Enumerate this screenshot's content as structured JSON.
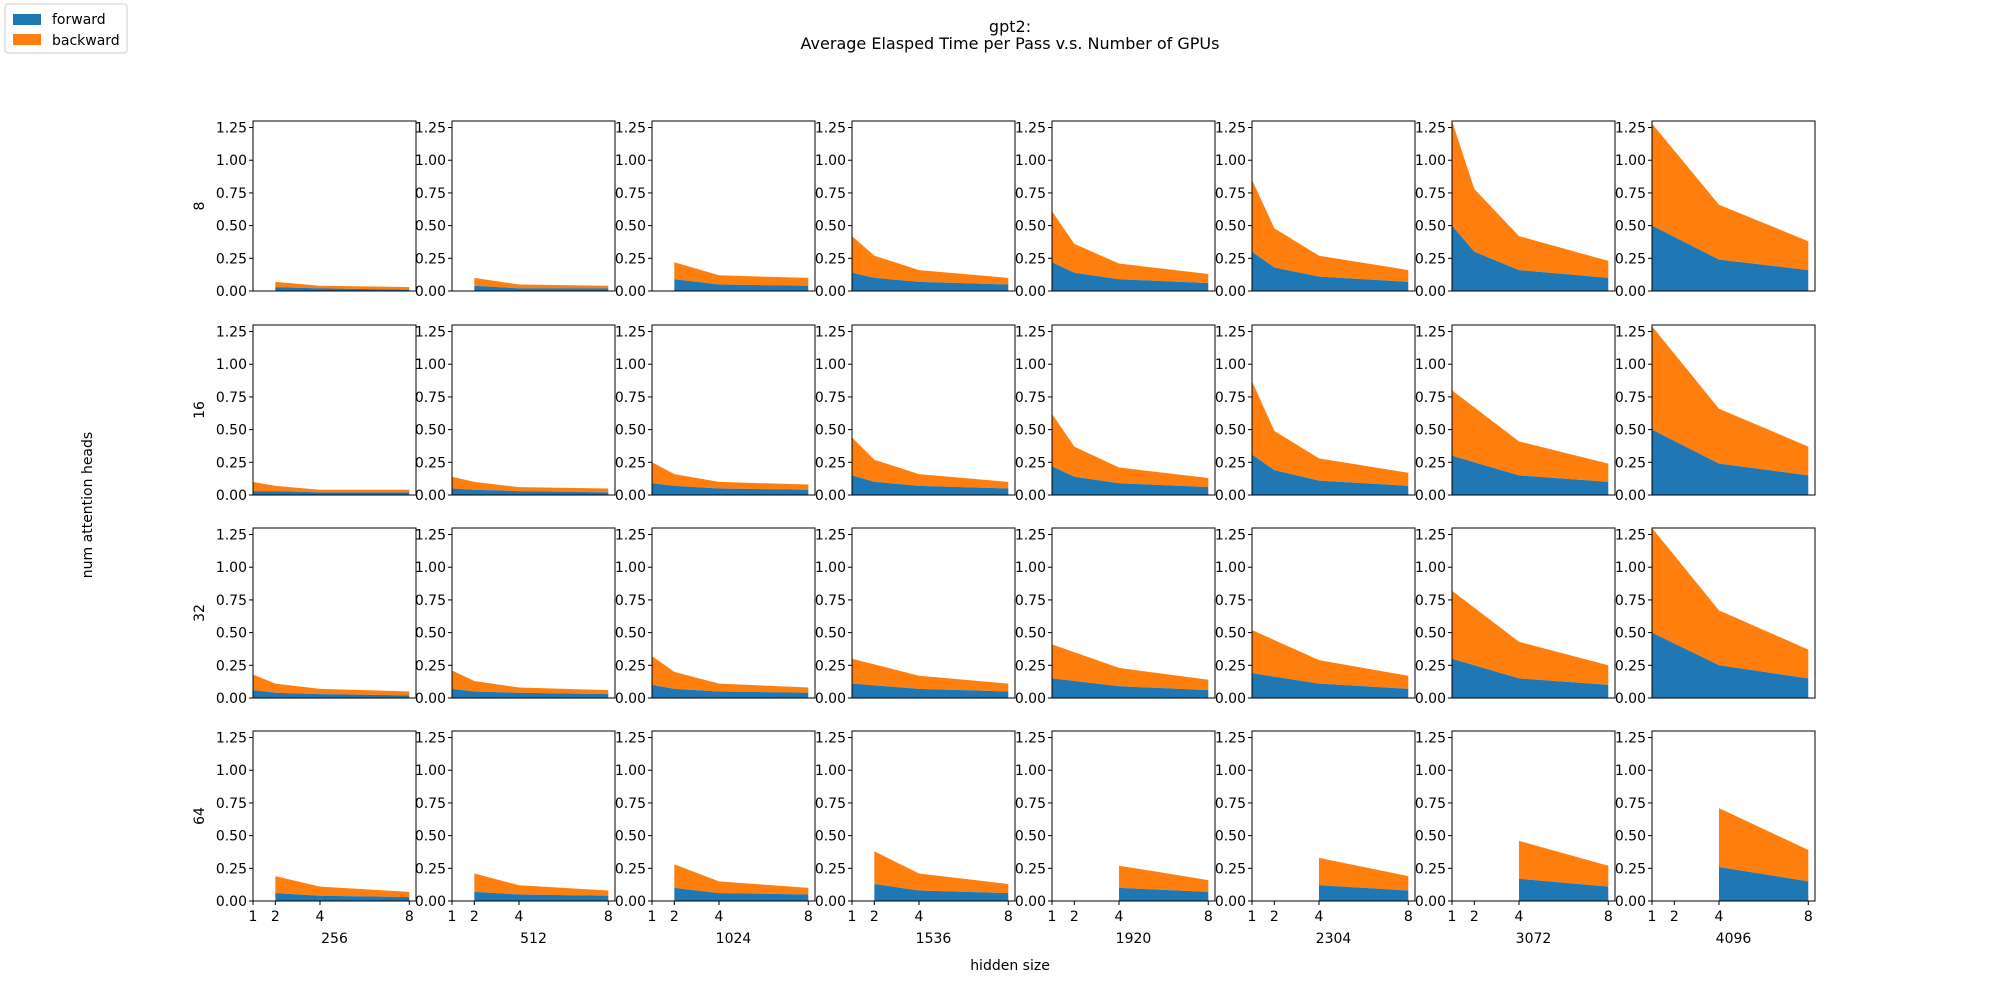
{
  "title_line1": "gpt2:",
  "title_line2": "Average Elasped Time per Pass v.s. Number of GPUs",
  "xlabel": "hidden size",
  "ylabel": "num attention heads",
  "legend": {
    "position": "top-left",
    "items": [
      {
        "label": "forward",
        "color": "#1f77b4"
      },
      {
        "label": "backward",
        "color": "#ff7f0e"
      }
    ]
  },
  "chart_data": {
    "type": "area",
    "stacked": true,
    "grid": false,
    "x_ticks": [
      1,
      2,
      4,
      8
    ],
    "y_ticks": [
      0.0,
      0.25,
      0.5,
      0.75,
      1.0,
      1.25
    ],
    "y_tick_labels": [
      "0.00",
      "0.25",
      "0.50",
      "0.75",
      "1.00",
      "1.25"
    ],
    "ylim": [
      0,
      1.3
    ],
    "xlim": [
      1,
      8.3
    ],
    "series_names": [
      "forward",
      "backward"
    ],
    "col_labels": [
      "256",
      "512",
      "1024",
      "1536",
      "1920",
      "2304",
      "3072",
      "4096"
    ],
    "row_labels": [
      "8",
      "16",
      "32",
      "64"
    ],
    "panels": [
      [
        {
          "x": [
            2,
            4,
            8
          ],
          "forward": [
            0.03,
            0.02,
            0.01
          ],
          "backward": [
            0.04,
            0.02,
            0.02
          ]
        },
        {
          "x": [
            2,
            4,
            8
          ],
          "forward": [
            0.04,
            0.02,
            0.02
          ],
          "backward": [
            0.06,
            0.03,
            0.02
          ]
        },
        {
          "x": [
            2,
            4,
            8
          ],
          "forward": [
            0.09,
            0.05,
            0.04
          ],
          "backward": [
            0.13,
            0.07,
            0.06
          ]
        },
        {
          "x": [
            1,
            2,
            4,
            8
          ],
          "forward": [
            0.14,
            0.1,
            0.07,
            0.05
          ],
          "backward": [
            0.28,
            0.17,
            0.09,
            0.05
          ]
        },
        {
          "x": [
            1,
            2,
            4,
            8
          ],
          "forward": [
            0.22,
            0.14,
            0.09,
            0.06
          ],
          "backward": [
            0.39,
            0.22,
            0.12,
            0.07
          ]
        },
        {
          "x": [
            1,
            2,
            4,
            8
          ],
          "forward": [
            0.3,
            0.18,
            0.11,
            0.07
          ],
          "backward": [
            0.55,
            0.3,
            0.16,
            0.09
          ]
        },
        {
          "x": [
            1,
            2,
            4,
            8
          ],
          "forward": [
            0.5,
            0.3,
            0.16,
            0.1
          ],
          "backward": [
            0.8,
            0.48,
            0.26,
            0.13
          ]
        },
        {
          "x": [
            1,
            4,
            8
          ],
          "forward": [
            0.5,
            0.24,
            0.16
          ],
          "backward": [
            0.78,
            0.42,
            0.22
          ]
        }
      ],
      [
        {
          "x": [
            1,
            2,
            4,
            8
          ],
          "forward": [
            0.03,
            0.03,
            0.02,
            0.02
          ],
          "backward": [
            0.07,
            0.04,
            0.02,
            0.02
          ]
        },
        {
          "x": [
            1,
            2,
            4,
            8
          ],
          "forward": [
            0.05,
            0.04,
            0.03,
            0.02
          ],
          "backward": [
            0.09,
            0.06,
            0.03,
            0.03
          ]
        },
        {
          "x": [
            1,
            2,
            4,
            8
          ],
          "forward": [
            0.09,
            0.07,
            0.05,
            0.04
          ],
          "backward": [
            0.16,
            0.09,
            0.05,
            0.04
          ]
        },
        {
          "x": [
            1,
            2,
            4,
            8
          ],
          "forward": [
            0.15,
            0.1,
            0.07,
            0.05
          ],
          "backward": [
            0.29,
            0.17,
            0.09,
            0.05
          ]
        },
        {
          "x": [
            1,
            2,
            4,
            8
          ],
          "forward": [
            0.22,
            0.14,
            0.09,
            0.06
          ],
          "backward": [
            0.4,
            0.23,
            0.12,
            0.07
          ]
        },
        {
          "x": [
            1,
            2,
            4,
            8
          ],
          "forward": [
            0.31,
            0.19,
            0.11,
            0.07
          ],
          "backward": [
            0.56,
            0.3,
            0.17,
            0.1
          ]
        },
        {
          "x": [
            1,
            4,
            8
          ],
          "forward": [
            0.3,
            0.15,
            0.1
          ],
          "backward": [
            0.5,
            0.26,
            0.14
          ]
        },
        {
          "x": [
            1,
            4,
            8
          ],
          "forward": [
            0.5,
            0.24,
            0.15
          ],
          "backward": [
            0.79,
            0.42,
            0.22
          ]
        }
      ],
      [
        {
          "x": [
            1,
            2,
            4,
            8
          ],
          "forward": [
            0.06,
            0.04,
            0.03,
            0.02
          ],
          "backward": [
            0.12,
            0.07,
            0.04,
            0.03
          ]
        },
        {
          "x": [
            1,
            2,
            4,
            8
          ],
          "forward": [
            0.07,
            0.05,
            0.04,
            0.03
          ],
          "backward": [
            0.14,
            0.08,
            0.04,
            0.03
          ]
        },
        {
          "x": [
            1,
            2,
            4,
            8
          ],
          "forward": [
            0.1,
            0.07,
            0.05,
            0.04
          ],
          "backward": [
            0.22,
            0.13,
            0.06,
            0.04
          ]
        },
        {
          "x": [
            1,
            4,
            8
          ],
          "forward": [
            0.11,
            0.07,
            0.05
          ],
          "backward": [
            0.19,
            0.1,
            0.06
          ]
        },
        {
          "x": [
            1,
            4,
            8
          ],
          "forward": [
            0.15,
            0.09,
            0.06
          ],
          "backward": [
            0.26,
            0.14,
            0.08
          ]
        },
        {
          "x": [
            1,
            4,
            8
          ],
          "forward": [
            0.19,
            0.11,
            0.07
          ],
          "backward": [
            0.33,
            0.18,
            0.1
          ]
        },
        {
          "x": [
            1,
            4,
            8
          ],
          "forward": [
            0.3,
            0.15,
            0.1
          ],
          "backward": [
            0.52,
            0.28,
            0.15
          ]
        },
        {
          "x": [
            1,
            4,
            8
          ],
          "forward": [
            0.5,
            0.25,
            0.15
          ],
          "backward": [
            0.8,
            0.42,
            0.22
          ]
        }
      ],
      [
        {
          "x": [
            2,
            4,
            8
          ],
          "forward": [
            0.06,
            0.04,
            0.03
          ],
          "backward": [
            0.13,
            0.07,
            0.04
          ]
        },
        {
          "x": [
            2,
            4,
            8
          ],
          "forward": [
            0.07,
            0.05,
            0.04
          ],
          "backward": [
            0.14,
            0.07,
            0.04
          ]
        },
        {
          "x": [
            2,
            4,
            8
          ],
          "forward": [
            0.1,
            0.06,
            0.05
          ],
          "backward": [
            0.18,
            0.09,
            0.05
          ]
        },
        {
          "x": [
            2,
            4,
            8
          ],
          "forward": [
            0.13,
            0.08,
            0.06
          ],
          "backward": [
            0.25,
            0.13,
            0.07
          ]
        },
        {
          "x": [
            4,
            8
          ],
          "forward": [
            0.1,
            0.07
          ],
          "backward": [
            0.17,
            0.09
          ]
        },
        {
          "x": [
            4,
            8
          ],
          "forward": [
            0.12,
            0.08
          ],
          "backward": [
            0.21,
            0.11
          ]
        },
        {
          "x": [
            4,
            8
          ],
          "forward": [
            0.17,
            0.11
          ],
          "backward": [
            0.29,
            0.16
          ]
        },
        {
          "x": [
            4,
            8
          ],
          "forward": [
            0.26,
            0.15
          ],
          "backward": [
            0.45,
            0.24
          ]
        }
      ]
    ]
  }
}
